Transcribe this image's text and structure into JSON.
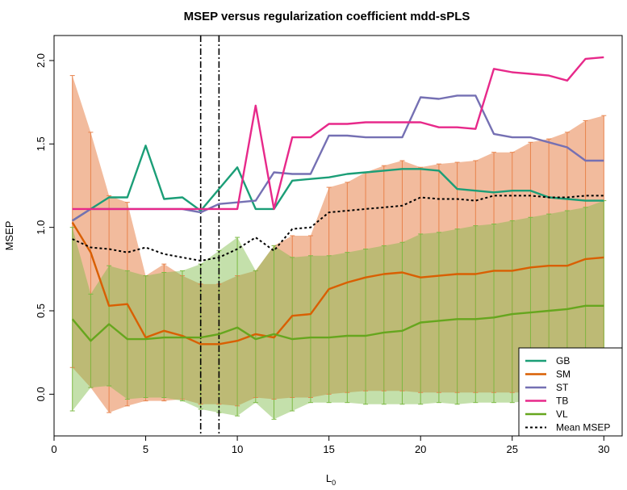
{
  "chart_data": {
    "type": "line",
    "title": "MSEP versus regularization coefficient mdd-sPLS",
    "xlabel": "L",
    "xlabel_subscript": "0",
    "ylabel": "MSEP",
    "xlim": [
      0,
      31
    ],
    "ylim": [
      -0.25,
      2.15
    ],
    "xticks": [
      0,
      5,
      10,
      15,
      20,
      25,
      30
    ],
    "yticks": [
      0.0,
      0.5,
      1.0,
      1.5,
      2.0
    ],
    "ytick_labels": [
      "0.0",
      "0.5",
      "1.0",
      "1.5",
      "2.0"
    ],
    "x": [
      1,
      2,
      3,
      4,
      5,
      6,
      7,
      8,
      9,
      10,
      11,
      12,
      13,
      14,
      15,
      16,
      17,
      18,
      19,
      20,
      21,
      22,
      23,
      24,
      25,
      26,
      27,
      28,
      29,
      30
    ],
    "vlines": [
      8,
      9
    ],
    "legend_position": "bottom-right",
    "bands": [
      {
        "series": "SM",
        "color": "#e8834c",
        "opacity": 0.55,
        "lower": [
          0.16,
          0.04,
          -0.11,
          -0.07,
          -0.04,
          -0.04,
          -0.03,
          -0.06,
          -0.06,
          -0.07,
          -0.02,
          -0.03,
          -0.02,
          -0.02,
          0.0,
          0.01,
          0.02,
          0.02,
          0.02,
          0.01,
          0.01,
          0.01,
          0.01,
          0.01,
          0.01,
          0.01,
          0.01,
          0.01,
          0.01,
          0.01
        ],
        "upper": [
          1.91,
          1.57,
          1.19,
          1.15,
          0.71,
          0.78,
          0.71,
          0.66,
          0.66,
          0.71,
          0.74,
          0.89,
          0.95,
          0.95,
          1.24,
          1.27,
          1.33,
          1.37,
          1.4,
          1.36,
          1.38,
          1.39,
          1.4,
          1.45,
          1.45,
          1.51,
          1.53,
          1.57,
          1.64,
          1.67
        ]
      },
      {
        "series": "VL",
        "color": "#7cba44",
        "opacity": 0.45,
        "lower": [
          -0.1,
          0.04,
          0.05,
          -0.03,
          -0.02,
          -0.02,
          -0.04,
          -0.09,
          -0.11,
          -0.13,
          -0.05,
          -0.15,
          -0.1,
          -0.05,
          -0.05,
          -0.05,
          -0.06,
          -0.06,
          -0.06,
          -0.06,
          -0.05,
          -0.06,
          -0.05,
          -0.05,
          -0.05,
          -0.04,
          -0.04,
          -0.04,
          -0.04,
          -0.04
        ],
        "upper": [
          1.0,
          0.6,
          0.77,
          0.74,
          0.71,
          0.73,
          0.74,
          0.78,
          0.86,
          0.94,
          0.74,
          0.89,
          0.82,
          0.83,
          0.83,
          0.85,
          0.87,
          0.89,
          0.91,
          0.96,
          0.97,
          0.99,
          1.01,
          1.02,
          1.04,
          1.06,
          1.08,
          1.1,
          1.12,
          1.16
        ]
      }
    ],
    "series": [
      {
        "name": "GB",
        "color": "#1b9e77",
        "values": [
          1.04,
          1.11,
          1.18,
          1.18,
          1.49,
          1.17,
          1.18,
          1.1,
          1.23,
          1.36,
          1.11,
          1.11,
          1.28,
          1.29,
          1.3,
          1.32,
          1.33,
          1.34,
          1.35,
          1.35,
          1.34,
          1.23,
          1.22,
          1.21,
          1.22,
          1.22,
          1.18,
          1.17,
          1.16,
          1.16
        ]
      },
      {
        "name": "SM",
        "color": "#d95f02",
        "values": [
          1.03,
          0.85,
          0.53,
          0.54,
          0.34,
          0.38,
          0.35,
          0.3,
          0.3,
          0.32,
          0.36,
          0.34,
          0.47,
          0.48,
          0.63,
          0.67,
          0.7,
          0.72,
          0.73,
          0.7,
          0.71,
          0.72,
          0.72,
          0.74,
          0.74,
          0.76,
          0.77,
          0.77,
          0.81,
          0.82
        ]
      },
      {
        "name": "ST",
        "color": "#7570b3",
        "values": [
          1.04,
          1.11,
          1.11,
          1.11,
          1.11,
          1.11,
          1.11,
          1.09,
          1.14,
          1.15,
          1.16,
          1.33,
          1.32,
          1.32,
          1.55,
          1.55,
          1.54,
          1.54,
          1.54,
          1.78,
          1.77,
          1.79,
          1.79,
          1.56,
          1.54,
          1.54,
          1.51,
          1.48,
          1.4,
          1.4
        ]
      },
      {
        "name": "TB",
        "color": "#e7298a",
        "values": [
          1.11,
          1.11,
          1.11,
          1.11,
          1.11,
          1.11,
          1.11,
          1.11,
          1.11,
          1.11,
          1.73,
          1.11,
          1.54,
          1.54,
          1.62,
          1.62,
          1.63,
          1.63,
          1.63,
          1.63,
          1.6,
          1.6,
          1.59,
          1.95,
          1.93,
          1.92,
          1.91,
          1.88,
          2.01,
          2.02
        ]
      },
      {
        "name": "VL",
        "color": "#66a61e",
        "values": [
          0.45,
          0.32,
          0.42,
          0.33,
          0.33,
          0.34,
          0.34,
          0.34,
          0.36,
          0.4,
          0.33,
          0.36,
          0.33,
          0.34,
          0.34,
          0.35,
          0.35,
          0.37,
          0.38,
          0.43,
          0.44,
          0.45,
          0.45,
          0.46,
          0.48,
          0.49,
          0.5,
          0.51,
          0.53,
          0.53
        ]
      },
      {
        "name": "Mean MSEP",
        "color": "#000000",
        "dashed": true,
        "values": [
          0.93,
          0.88,
          0.87,
          0.85,
          0.88,
          0.84,
          0.82,
          0.8,
          0.82,
          0.87,
          0.94,
          0.86,
          0.99,
          1.0,
          1.09,
          1.1,
          1.11,
          1.12,
          1.13,
          1.18,
          1.17,
          1.17,
          1.16,
          1.19,
          1.19,
          1.19,
          1.18,
          1.18,
          1.19,
          1.19
        ]
      }
    ]
  }
}
